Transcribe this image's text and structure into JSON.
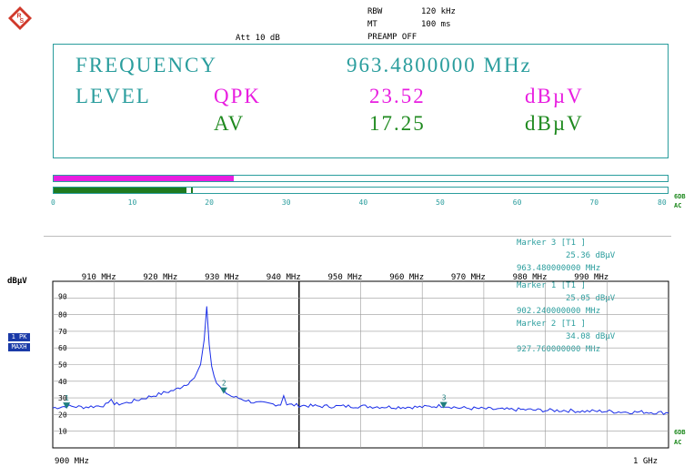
{
  "header": {
    "att": "Att 10 dB",
    "rbw_label": "RBW",
    "rbw_value": "120 kHz",
    "mt_label": "MT",
    "mt_value": "100 ms",
    "preamp": "PREAMP OFF"
  },
  "readout": {
    "frequency_label": "FREQUENCY",
    "frequency_value": "963.4800000 MHz",
    "level_label": "LEVEL",
    "qpk_label": "QPK",
    "qpk_value": "23.52",
    "qpk_unit": "dBµV",
    "av_label": "AV",
    "av_value": "17.25",
    "av_unit": "dBµV"
  },
  "bars": {
    "qpk_fraction": 0.294,
    "av_fraction": 0.216,
    "av_marker_fraction": 0.224,
    "scale": [
      "0",
      "10",
      "20",
      "30",
      "40",
      "50",
      "60",
      "70",
      "80"
    ],
    "right_label_1": "6DB",
    "right_label_2": "AC"
  },
  "markers": {
    "m3_title": "Marker 3 [T1 ]",
    "m3_level": "25.36 dBµV",
    "m3_freq": "963.480000000 MHz",
    "m1_title": "Marker 1 [T1 ]",
    "m1_level": "25.05 dBµV",
    "m1_freq": "902.240000000 MHz",
    "m2_title": "Marker 2 [T1 ]",
    "m2_level": "34.08 dBµV",
    "m2_freq": "927.760000000 MHz"
  },
  "plot": {
    "y_unit": "dBµV",
    "trace_tag_1": "1 PK",
    "trace_tag_2": "MAXH",
    "x_start": "900 MHz",
    "x_stop": "1 GHz",
    "right_label_top_1": "6DB",
    "right_label_top_2": "AC",
    "right_label_bot_1": "6DB",
    "right_label_bot_2": "AC"
  },
  "colors": {
    "teal": "#2a9d9d",
    "magenta": "#e81ee0",
    "green": "#1f8a1f",
    "trace": "#1a2ee8"
  },
  "icons": {
    "logo": "rohde-schwarz-logo"
  },
  "chart_data": {
    "type": "line",
    "xlim": [
      900,
      1000
    ],
    "ylim": [
      0,
      100
    ],
    "x_tick_labels": [
      "910 MHz",
      "920 MHz",
      "930 MHz",
      "940 MHz",
      "950 MHz",
      "960 MHz",
      "970 MHz",
      "980 MHz",
      "990 MHz"
    ],
    "y_tick_labels": [
      "90",
      "80",
      "70",
      "60",
      "50",
      "40",
      "30",
      "20",
      "10"
    ],
    "series": [
      {
        "x": [
          900,
          902.24,
          905,
          907,
          909,
          909.5,
          910,
          912,
          914,
          916,
          918,
          920,
          921,
          922,
          923,
          924,
          924.6,
          925,
          925.4,
          925.8,
          926.2,
          926.6,
          927,
          927.76,
          929,
          931,
          933,
          935,
          937,
          937.5,
          938,
          940,
          943,
          946,
          950,
          955,
          958,
          960,
          963.48,
          966,
          970,
          973,
          976,
          980,
          983,
          986,
          990,
          993,
          996,
          1000
        ],
        "y": [
          24,
          25.05,
          24.5,
          25,
          26,
          30,
          26,
          27,
          29,
          31,
          33,
          35,
          37,
          39,
          42,
          50,
          65,
          85,
          62,
          49,
          43,
          39,
          37,
          34.08,
          31,
          29,
          27,
          26.5,
          26,
          32,
          26,
          25.5,
          25,
          25,
          25,
          24.5,
          24.5,
          24.5,
          25.36,
          24,
          23.5,
          23,
          23,
          22.5,
          22.5,
          22,
          22,
          21.5,
          21.5,
          21
        ]
      }
    ],
    "marker_points": [
      {
        "label": "1",
        "x": 902.24,
        "y": 25.05
      },
      {
        "label": "2",
        "x": 927.76,
        "y": 34.08
      },
      {
        "label": "3",
        "x": 963.48,
        "y": 25.36
      }
    ]
  }
}
